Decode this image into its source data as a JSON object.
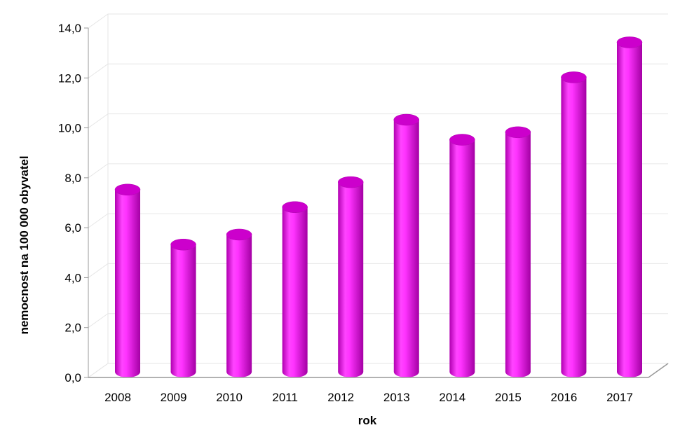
{
  "chart_data": {
    "type": "bar",
    "style": "3d-cylinder",
    "title": "",
    "categories": [
      "2008",
      "2009",
      "2010",
      "2011",
      "2012",
      "2013",
      "2014",
      "2015",
      "2016",
      "2017"
    ],
    "values": [
      7.3,
      5.1,
      5.5,
      6.6,
      7.6,
      10.1,
      9.3,
      9.6,
      11.8,
      13.2
    ],
    "xlabel": "rok",
    "ylabel": "nemocnost na 100 000 obyvatel",
    "ylim": [
      0,
      14
    ],
    "ytick_step": 2,
    "ytick_labels": [
      "0,0",
      "2,0",
      "4,0",
      "6,0",
      "8,0",
      "10,0",
      "12,0",
      "14,0"
    ],
    "grid": true,
    "bar_color": "#ff22ff",
    "bar_dark_color": "#b000b0",
    "bar_top_color": "#cc00cc",
    "grid_color": "#e6e6e6",
    "axis_color": "#999999"
  }
}
